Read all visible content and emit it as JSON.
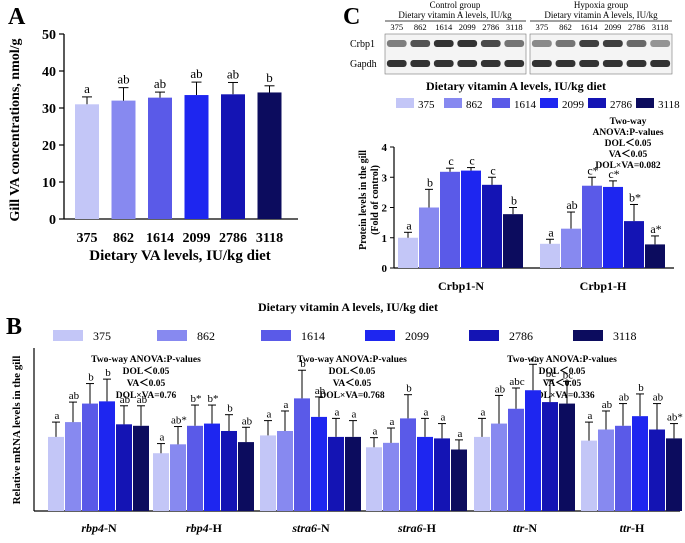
{
  "colors": {
    "c375": "#c3c6f7",
    "c862": "#8789f0",
    "c1614": "#5a5ae8",
    "c2099": "#1e26f0",
    "c2786": "#1414b4",
    "c3118": "#0c0c5e",
    "axis": "#000000",
    "blot_bg": "#f4f4f4",
    "blot_band": "#1e1e1e"
  },
  "chart_data": [
    {
      "panel": "A",
      "type": "bar",
      "ylabel": "Gill VA concentrations, nmol/g",
      "xlabel": "Dietary VA levels, IU/kg diet",
      "ylim": [
        0,
        50
      ],
      "yticks": [
        "0",
        "10",
        "20",
        "30",
        "40",
        "50"
      ],
      "categories": [
        "375",
        "862",
        "1614",
        "2099",
        "2786",
        "3118"
      ],
      "values": [
        31,
        32,
        32.8,
        33.5,
        33.7,
        34.2
      ],
      "errors": [
        2,
        3.5,
        1.5,
        3.5,
        3.2,
        1.8
      ],
      "labels": [
        "a",
        "ab",
        "ab",
        "ab",
        "ab",
        "b"
      ]
    },
    {
      "panel": "C",
      "type": "bar",
      "ylabel_line1": "Protein levels in the gill",
      "ylabel_line2": "(Fold of control)",
      "ylim": [
        0,
        4
      ],
      "yticks": [
        "0",
        "1",
        "2",
        "3",
        "4"
      ],
      "legend_title": "Dietary vitamin A levels, IU/kg diet",
      "series_names": [
        "375",
        "862",
        "1614",
        "2099",
        "2786",
        "3118"
      ],
      "groups": [
        {
          "name": "Crbp1-N",
          "values": [
            1.0,
            2.0,
            3.18,
            3.22,
            2.75,
            1.78
          ],
          "errors": [
            0.18,
            0.6,
            0.12,
            0.1,
            0.25,
            0.22
          ],
          "labels": [
            "a",
            "b",
            "c",
            "c",
            "c",
            "b"
          ]
        },
        {
          "name": "Crbp1-H",
          "values": [
            0.8,
            1.3,
            2.72,
            2.68,
            1.55,
            0.78
          ],
          "errors": [
            0.15,
            0.55,
            0.28,
            0.2,
            0.55,
            0.28
          ],
          "labels": [
            "a",
            "ab",
            "c*",
            "c*",
            "b*",
            "a*"
          ]
        }
      ],
      "anova": [
        "Two-way",
        "ANOVA:P-values",
        "DOL＜0.05",
        "VA＜0.05",
        "DOL×VA=0.082"
      ]
    },
    {
      "panel": "B",
      "type": "bar",
      "ylabel": "Relative mRNA levels in the gill",
      "ylim": [
        0,
        2.2
      ],
      "legend_title": "Dietary vitamin A levels, IU/kg diet",
      "series_names": [
        "375",
        "862",
        "1614",
        "2099",
        "2786",
        "3118"
      ],
      "groups": [
        {
          "name_italic": "rbp4",
          "name_suffix": "-N",
          "values": [
            1.0,
            1.2,
            1.45,
            1.48,
            1.17,
            1.15
          ],
          "errors": [
            0.2,
            0.27,
            0.27,
            0.3,
            0.25,
            0.27
          ],
          "labels": [
            "a",
            "ab",
            "b",
            "b",
            "ab",
            "ab"
          ]
        },
        {
          "name_italic": "rbp4",
          "name_suffix": "-H",
          "values": [
            0.78,
            0.9,
            1.15,
            1.18,
            1.08,
            0.93
          ],
          "errors": [
            0.13,
            0.24,
            0.28,
            0.25,
            0.22,
            0.2
          ],
          "labels": [
            "a",
            "ab*",
            "b*",
            "b*",
            "b",
            "ab"
          ]
        },
        {
          "name_italic": "stra6",
          "name_suffix": "-N",
          "values": [
            1.02,
            1.08,
            1.52,
            1.27,
            1.0,
            1.0
          ],
          "errors": [
            0.2,
            0.27,
            0.38,
            0.27,
            0.25,
            0.22
          ],
          "labels": [
            "a",
            "a",
            "b",
            "ab",
            "a",
            "a"
          ]
        },
        {
          "name_italic": "stra6",
          "name_suffix": "-H",
          "values": [
            0.86,
            0.92,
            1.25,
            1.0,
            0.98,
            0.83
          ],
          "errors": [
            0.13,
            0.2,
            0.32,
            0.25,
            0.2,
            0.13
          ],
          "labels": [
            "a",
            "a",
            "b",
            "a",
            "a",
            "a"
          ]
        },
        {
          "name_italic": "ttr",
          "name_suffix": "-N",
          "values": [
            1.0,
            1.18,
            1.38,
            1.63,
            1.47,
            1.45
          ],
          "errors": [
            0.25,
            0.38,
            0.28,
            0.35,
            0.3,
            0.3
          ],
          "labels": [
            "a",
            "ab",
            "abc",
            "c",
            "bc",
            "bc"
          ]
        },
        {
          "name_italic": "ttr",
          "name_suffix": "-H",
          "values": [
            0.95,
            1.1,
            1.15,
            1.28,
            1.1,
            0.98
          ],
          "errors": [
            0.25,
            0.25,
            0.3,
            0.3,
            0.35,
            0.2
          ],
          "labels": [
            "a",
            "ab",
            "ab",
            "b",
            "ab",
            "ab*"
          ]
        }
      ],
      "anova_blocks": [
        [
          "Two-way ANOVA:P-values",
          "DOL＜0.05",
          "VA＜0.05",
          "DOL×VA=0.76"
        ],
        [
          "Two-way ANOVA:P-values",
          "DOL＜0.05",
          "VA＜0.05",
          "DOL×VA=0.768"
        ],
        [
          "Two-way ANOVA:P-values",
          "DOL＜0.05",
          "VA＜0.05",
          "DOL×VA=0.336"
        ]
      ]
    }
  ],
  "panel_letters": {
    "a": "A",
    "b": "B",
    "c": "C"
  },
  "blot": {
    "control_label_1": "Control group",
    "control_label_2": "Dietary vitamin A levels, IU/kg",
    "hypoxia_label_1": "Hypoxia group",
    "hypoxia_label_2": "Dietary vitamin A levels, IU/kg",
    "lane_labels": [
      "375",
      "862",
      "1614",
      "2099",
      "2786",
      "3118"
    ],
    "row1": "Crbp1",
    "row2": "Gapdh"
  }
}
